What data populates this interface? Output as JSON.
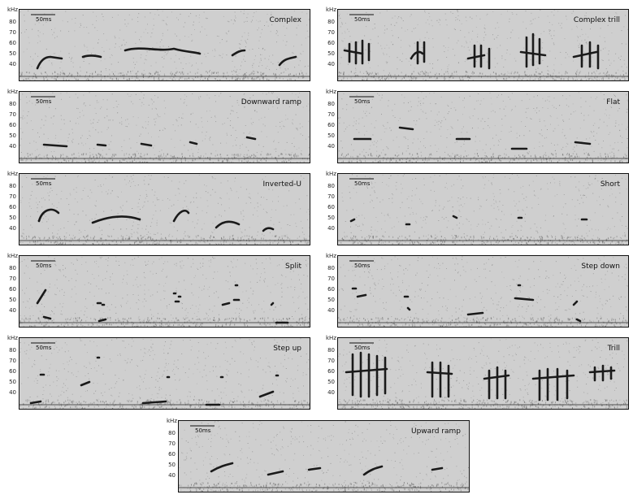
{
  "axis": {
    "unit": "kHz",
    "ticks": [
      "80",
      "70",
      "60",
      "50",
      "40"
    ],
    "scalebar_label": "50ms"
  },
  "panels": [
    {
      "title": "Complex"
    },
    {
      "title": "Complex trill"
    },
    {
      "title": "Downward ramp"
    },
    {
      "title": "Flat"
    },
    {
      "title": "Inverted-U"
    },
    {
      "title": "Short"
    },
    {
      "title": "Split"
    },
    {
      "title": "Step down"
    },
    {
      "title": "Step up"
    },
    {
      "title": "Trill"
    },
    {
      "title": "Upward ramp"
    }
  ],
  "colors": {
    "background": "#cfcfcf",
    "call": "#1a1a1a",
    "noise": "#8a8a8a"
  }
}
